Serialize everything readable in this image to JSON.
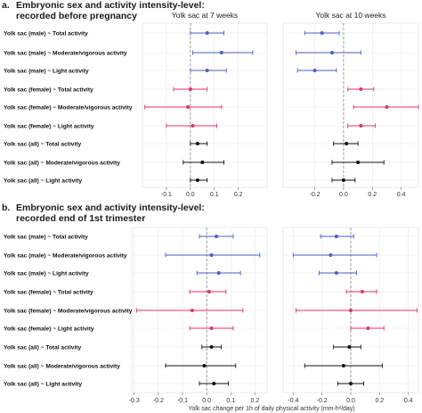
{
  "colors": {
    "male": "#4a5fc1",
    "female": "#e0306e",
    "all": "#111111",
    "grid": "#e8e8e8",
    "zero": "#888888"
  },
  "rows": [
    "Yolk sac (male) ~ Total activity",
    "Yolk sac (male) ~ Moderate/vigorous activity",
    "Yolk sac (male) ~ Light activity",
    "Yolk sac (female) ~ Total activity",
    "Yolk sac (female) ~ Moderate/vigorous activity",
    "Yolk sac (female) ~ Light activity",
    "Yolk sac (all) ~ Total activity",
    "Yolk sac (all) ~ Moderate/vigorous activity",
    "Yolk sac (all) ~ Light activity"
  ],
  "row_groups": [
    "male",
    "male",
    "male",
    "female",
    "female",
    "female",
    "all",
    "all",
    "all"
  ],
  "sections": [
    {
      "letter": "a.",
      "title_line1": "Embryonic sex and activity intensity-level:",
      "title_line2": "recorded before pregnancy"
    },
    {
      "letter": "b.",
      "title_line1": "Embryonic sex and activity intensity-level:",
      "title_line2": "recorded end of 1st trimester"
    }
  ],
  "xlabel": "Yolk sac change per 1h of daily physical activity (mm-h²/day)",
  "chart_data": [
    {
      "type": "forest",
      "section": "a",
      "title": "Yolk sac at 7 weeks",
      "xlim": [
        -0.2,
        0.32
      ],
      "ticks": [
        -0.1,
        0.0,
        0.1,
        0.2
      ],
      "tick_labels": [
        "-0.1",
        "0.0",
        "0.1",
        "0.2"
      ],
      "estimates": [
        0.07,
        0.13,
        0.07,
        0.0,
        -0.01,
        0.01,
        0.03,
        0.05,
        0.03
      ],
      "lower": [
        0.0,
        0.01,
        0.0,
        -0.07,
        -0.19,
        -0.1,
        0.0,
        -0.03,
        0.0
      ],
      "upper": [
        0.14,
        0.26,
        0.15,
        0.07,
        0.13,
        0.11,
        0.07,
        0.14,
        0.07
      ]
    },
    {
      "type": "forest",
      "section": "a",
      "title": "Yolk sac at 10 weeks",
      "xlim": [
        -0.42,
        0.52
      ],
      "ticks": [
        -0.2,
        0.0,
        0.2,
        0.4
      ],
      "tick_labels": [
        "-0.2",
        "0.0",
        "0.2",
        "0.4"
      ],
      "estimates": [
        -0.15,
        -0.08,
        -0.2,
        0.12,
        0.3,
        0.12,
        0.02,
        0.1,
        0.0
      ],
      "lower": [
        -0.27,
        -0.33,
        -0.32,
        0.03,
        0.07,
        0.03,
        -0.07,
        -0.08,
        -0.08
      ],
      "upper": [
        -0.03,
        0.12,
        -0.05,
        0.21,
        0.52,
        0.22,
        0.1,
        0.28,
        0.08
      ]
    },
    {
      "type": "forest",
      "section": "b",
      "title": "",
      "xlim": [
        -0.31,
        0.25
      ],
      "ticks": [
        -0.3,
        -0.2,
        -0.1,
        0.0,
        0.1,
        0.2
      ],
      "tick_labels": [
        "-0.3",
        "-0.2",
        "-0.1",
        "0.0",
        "0.1",
        "0.2"
      ],
      "estimates": [
        0.04,
        0.02,
        0.05,
        0.01,
        -0.06,
        0.02,
        0.02,
        -0.01,
        0.03
      ],
      "lower": [
        -0.03,
        -0.17,
        -0.04,
        -0.07,
        -0.29,
        -0.07,
        -0.02,
        -0.17,
        -0.03
      ],
      "upper": [
        0.11,
        0.22,
        0.14,
        0.08,
        0.15,
        0.11,
        0.06,
        0.12,
        0.09
      ]
    },
    {
      "type": "forest",
      "section": "b",
      "title": "",
      "xlim": [
        -0.47,
        0.47
      ],
      "ticks": [
        -0.4,
        -0.2,
        0.0,
        0.2,
        0.4
      ],
      "tick_labels": [
        "-0.4",
        "-0.2",
        "0.0",
        "0.2",
        "0.4"
      ],
      "estimates": [
        -0.1,
        -0.14,
        -0.1,
        0.08,
        0.0,
        0.12,
        -0.01,
        -0.05,
        0.0
      ],
      "lower": [
        -0.21,
        -0.4,
        -0.22,
        -0.03,
        -0.38,
        0.0,
        -0.12,
        -0.32,
        -0.09
      ],
      "upper": [
        0.02,
        0.18,
        0.04,
        0.18,
        0.46,
        0.23,
        0.07,
        0.22,
        0.09
      ]
    }
  ]
}
